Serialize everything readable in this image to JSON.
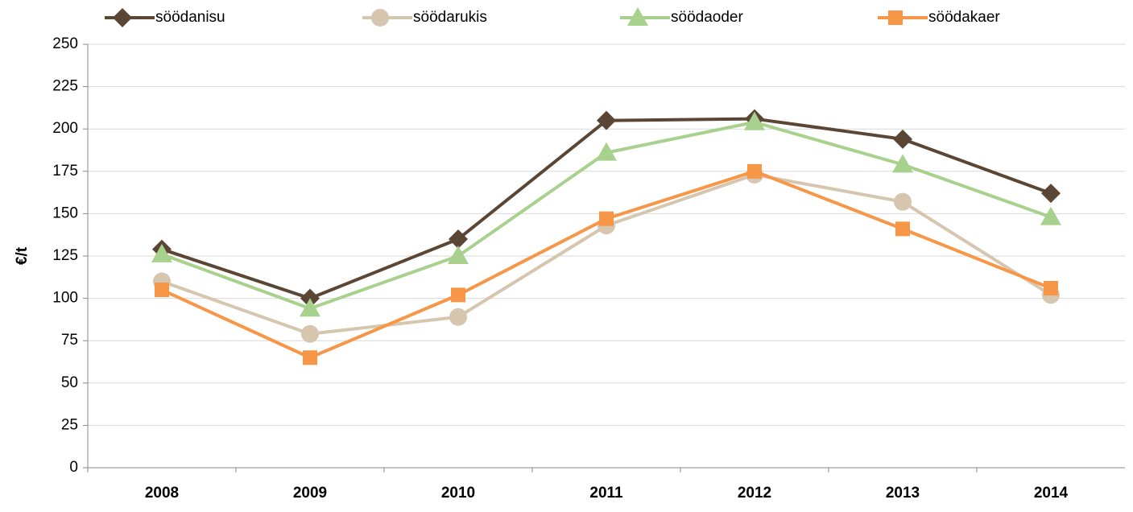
{
  "chart_data": {
    "type": "line",
    "y_label": "€/t",
    "categories": [
      "2008",
      "2009",
      "2010",
      "2011",
      "2012",
      "2013",
      "2014"
    ],
    "series": [
      {
        "name": "söödanisu",
        "color": "#5b4636",
        "marker": "diamond",
        "values": [
          129,
          100,
          135,
          205,
          206,
          194,
          162
        ]
      },
      {
        "name": "söödarukis",
        "color": "#d6c6b0",
        "marker": "circle",
        "values": [
          110,
          79,
          89,
          143,
          173,
          157,
          102
        ]
      },
      {
        "name": "söödaoder",
        "color": "#a8d18d",
        "marker": "triangle",
        "values": [
          126,
          94,
          125,
          186,
          204,
          179,
          148
        ]
      },
      {
        "name": "söödakaer",
        "color": "#f79646",
        "marker": "square",
        "values": [
          105,
          65,
          102,
          147,
          175,
          141,
          106
        ]
      }
    ],
    "ylim": [
      0,
      250
    ],
    "yticks": [
      0,
      25,
      50,
      75,
      100,
      125,
      150,
      175,
      200,
      225,
      250
    ],
    "grid": true,
    "legend": "top"
  }
}
